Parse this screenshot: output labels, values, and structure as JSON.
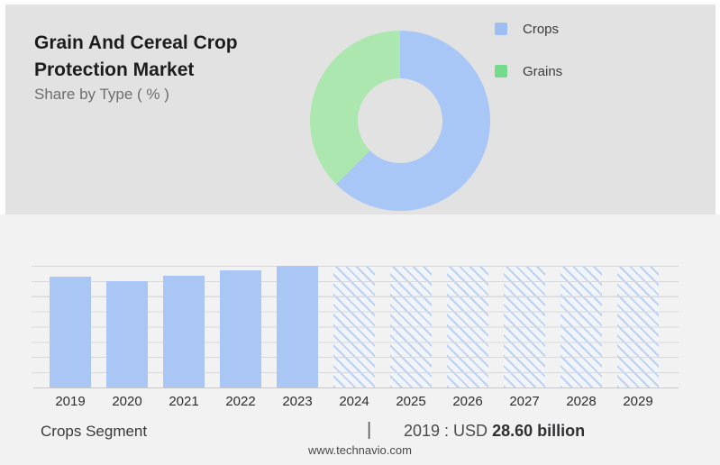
{
  "header": {
    "title_line1": "Grain And Cereal Crop",
    "title_line2": "Protection Market",
    "subtitle": "Share by Type ( % )"
  },
  "legend": {
    "items": [
      {
        "label": "Crops",
        "color": "#9cbef2"
      },
      {
        "label": "Grains",
        "color": "#74da8c"
      }
    ]
  },
  "chart_data": [
    {
      "type": "pie",
      "subtype": "donut",
      "title": "Share by Type ( % )",
      "labels": [
        "Crops",
        "Grains"
      ],
      "values_percent": [
        62.5,
        37.5
      ],
      "colors": [
        "#a8c6f6",
        "#abe7ae"
      ],
      "start_angle_deg": 0,
      "direction": "clockwise",
      "inner_radius_ratio": 0.47,
      "legend_position": "top-right"
    },
    {
      "type": "bar",
      "title": "Crops Segment market size by year",
      "categories": [
        "2019",
        "2020",
        "2021",
        "2022",
        "2023",
        "2024",
        "2025",
        "2026",
        "2027",
        "2028",
        "2029"
      ],
      "series": [
        {
          "name": "Crops Segment",
          "heights_percent_of_max": [
            91,
            87.5,
            92,
            96,
            100,
            100,
            100,
            100,
            100,
            100,
            100
          ]
        }
      ],
      "forecast_categories": [
        "2024",
        "2025",
        "2026",
        "2027",
        "2028",
        "2029"
      ],
      "forecast_style": "hatched",
      "known_value": {
        "year": "2019",
        "label": "USD 28.60 billion"
      },
      "bar_color": "#a9c6f4",
      "hatch_color": "#bdd2f0",
      "gridlines": 9,
      "xlabel": "",
      "ylabel": "",
      "legend_position": "none"
    }
  ],
  "footer": {
    "segment_label": "Crops Segment",
    "separator": "|",
    "value_prefix": "2019 : USD",
    "value_bold": "28.60 billion",
    "website": "www.technavio.com"
  }
}
